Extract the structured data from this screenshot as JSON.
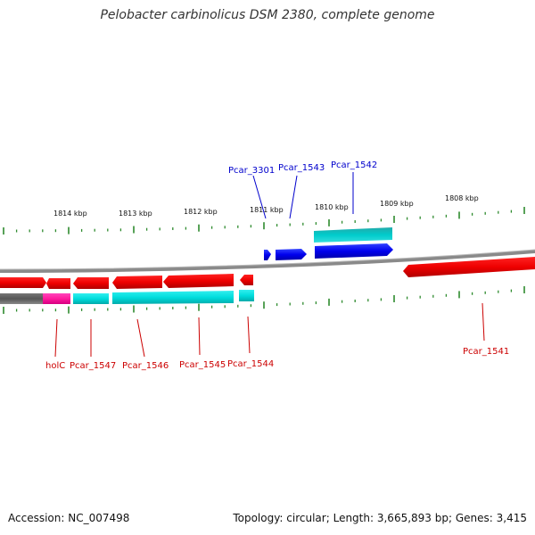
{
  "title": "Pelobacter carbinolicus DSM 2380, complete genome",
  "footer": {
    "accession_label": "Accession:",
    "accession": "NC_007498",
    "topology_label": "Topology:",
    "topology": "circular",
    "length_label": "Length:",
    "length": "3,665,893 bp",
    "genes_label": "Genes:",
    "genes": "3,415"
  },
  "scale": {
    "ticks": [
      "1814 kbp",
      "1813 kbp",
      "1812 kbp",
      "1811 kbp",
      "1810 kbp",
      "1809 kbp",
      "1808 kbp"
    ]
  },
  "genes_top": [
    {
      "name": "Pcar_3301",
      "color": "#0000cc"
    },
    {
      "name": "Pcar_1543",
      "color": "#0000cc"
    },
    {
      "name": "Pcar_1542",
      "color": "#0000cc"
    }
  ],
  "genes_bottom": [
    {
      "name": "holC",
      "color": "#cc0000"
    },
    {
      "name": "Pcar_1547",
      "color": "#cc0000"
    },
    {
      "name": "Pcar_1546",
      "color": "#cc0000"
    },
    {
      "name": "Pcar_1545",
      "color": "#cc0000"
    },
    {
      "name": "Pcar_1544",
      "color": "#cc0000"
    },
    {
      "name": "Pcar_1541",
      "color": "#cc0000"
    }
  ],
  "colors": {
    "forward_gene": "#0000ff",
    "reverse_gene": "#ff0000",
    "forward_feature": "#00cccc",
    "reverse_feature": "#00e5e5",
    "rna_feature": "#ff33aa",
    "backbone": "#888888",
    "tick": "#2e8b2e"
  }
}
